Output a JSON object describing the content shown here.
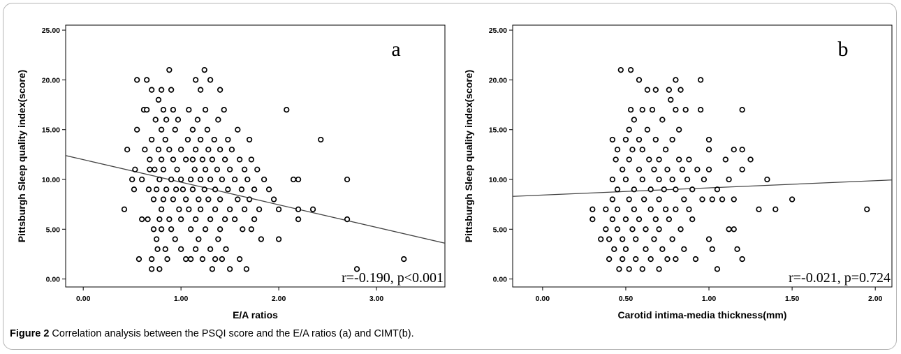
{
  "caption": {
    "label": "Figure 2",
    "text": " Correlation analysis between the PSQI score and the E/A ratios (a) and CIMT(b)."
  },
  "chart_data": [
    {
      "type": "scatter",
      "panel_letter": "a",
      "annotation": "r=-0.190, p<0.001",
      "xlabel": "E/A ratios",
      "ylabel": "Pittsburgh Sleep quality index(score)",
      "xlim": [
        -0.18,
        3.7
      ],
      "ylim": [
        -0.8,
        25.5
      ],
      "xticks": [
        0.0,
        1.0,
        2.0,
        3.0
      ],
      "xtick_labels": [
        "0.00",
        "1.00",
        "2.00",
        "3.00"
      ],
      "yticks": [
        0,
        5,
        10,
        15,
        20,
        25
      ],
      "ytick_labels": [
        "0.00",
        "5.00",
        "10.00",
        "15.00",
        "20.00",
        "25.00"
      ],
      "fit_line": {
        "x": [
          -0.18,
          3.7
        ],
        "y": [
          12.4,
          3.6
        ]
      },
      "points": [
        [
          0.45,
          13
        ],
        [
          0.42,
          7
        ],
        [
          0.5,
          10
        ],
        [
          0.52,
          9
        ],
        [
          0.53,
          11
        ],
        [
          0.55,
          15
        ],
        [
          0.55,
          20
        ],
        [
          0.57,
          2
        ],
        [
          0.6,
          10
        ],
        [
          0.6,
          6
        ],
        [
          0.62,
          17
        ],
        [
          0.63,
          13
        ],
        [
          0.65,
          20
        ],
        [
          0.65,
          17
        ],
        [
          0.66,
          6
        ],
        [
          0.67,
          9
        ],
        [
          0.68,
          12
        ],
        [
          0.68,
          11
        ],
        [
          0.7,
          19
        ],
        [
          0.7,
          14
        ],
        [
          0.7,
          2
        ],
        [
          0.7,
          1
        ],
        [
          0.72,
          5
        ],
        [
          0.72,
          8
        ],
        [
          0.73,
          11
        ],
        [
          0.74,
          16
        ],
        [
          0.75,
          9
        ],
        [
          0.75,
          4
        ],
        [
          0.76,
          3
        ],
        [
          0.77,
          18
        ],
        [
          0.77,
          13
        ],
        [
          0.78,
          10
        ],
        [
          0.78,
          6
        ],
        [
          0.78,
          1
        ],
        [
          0.8,
          19
        ],
        [
          0.8,
          15
        ],
        [
          0.8,
          12
        ],
        [
          0.8,
          7
        ],
        [
          0.8,
          5
        ],
        [
          0.82,
          17
        ],
        [
          0.82,
          11
        ],
        [
          0.82,
          8
        ],
        [
          0.84,
          14
        ],
        [
          0.84,
          3
        ],
        [
          0.85,
          16
        ],
        [
          0.85,
          9
        ],
        [
          0.86,
          2
        ],
        [
          0.88,
          21
        ],
        [
          0.88,
          13
        ],
        [
          0.88,
          6
        ],
        [
          0.9,
          19
        ],
        [
          0.9,
          10
        ],
        [
          0.9,
          5
        ],
        [
          0.92,
          17
        ],
        [
          0.92,
          12
        ],
        [
          0.92,
          8
        ],
        [
          0.94,
          15
        ],
        [
          0.94,
          4
        ],
        [
          0.95,
          9
        ],
        [
          0.96,
          11
        ],
        [
          0.97,
          16
        ],
        [
          0.98,
          7
        ],
        [
          1.0,
          13
        ],
        [
          1.0,
          10
        ],
        [
          1.0,
          6
        ],
        [
          1.0,
          3
        ],
        [
          1.02,
          9
        ],
        [
          1.05,
          12
        ],
        [
          1.05,
          8
        ],
        [
          1.05,
          2
        ],
        [
          1.07,
          14
        ],
        [
          1.08,
          17
        ],
        [
          1.08,
          7
        ],
        [
          1.1,
          10
        ],
        [
          1.1,
          5
        ],
        [
          1.1,
          2
        ],
        [
          1.12,
          15
        ],
        [
          1.12,
          12
        ],
        [
          1.12,
          9
        ],
        [
          1.14,
          11
        ],
        [
          1.15,
          20
        ],
        [
          1.15,
          13
        ],
        [
          1.15,
          6
        ],
        [
          1.15,
          3
        ],
        [
          1.17,
          16
        ],
        [
          1.18,
          8
        ],
        [
          1.18,
          4
        ],
        [
          1.2,
          19
        ],
        [
          1.2,
          14
        ],
        [
          1.2,
          10
        ],
        [
          1.2,
          7
        ],
        [
          1.22,
          12
        ],
        [
          1.22,
          2
        ],
        [
          1.24,
          21
        ],
        [
          1.24,
          9
        ],
        [
          1.25,
          17
        ],
        [
          1.25,
          11
        ],
        [
          1.25,
          5
        ],
        [
          1.27,
          15
        ],
        [
          1.28,
          13
        ],
        [
          1.28,
          8
        ],
        [
          1.3,
          20
        ],
        [
          1.3,
          10
        ],
        [
          1.3,
          6
        ],
        [
          1.3,
          3
        ],
        [
          1.32,
          12
        ],
        [
          1.32,
          1
        ],
        [
          1.34,
          14
        ],
        [
          1.35,
          9
        ],
        [
          1.35,
          7
        ],
        [
          1.35,
          2
        ],
        [
          1.37,
          11
        ],
        [
          1.38,
          16
        ],
        [
          1.38,
          4
        ],
        [
          1.4,
          19
        ],
        [
          1.4,
          13
        ],
        [
          1.4,
          8
        ],
        [
          1.4,
          5
        ],
        [
          1.42,
          10
        ],
        [
          1.42,
          2
        ],
        [
          1.44,
          17
        ],
        [
          1.45,
          12
        ],
        [
          1.45,
          6
        ],
        [
          1.46,
          3
        ],
        [
          1.48,
          14
        ],
        [
          1.48,
          9
        ],
        [
          1.5,
          11
        ],
        [
          1.5,
          7
        ],
        [
          1.5,
          1
        ],
        [
          1.52,
          13
        ],
        [
          1.55,
          10
        ],
        [
          1.55,
          6
        ],
        [
          1.58,
          15
        ],
        [
          1.58,
          8
        ],
        [
          1.6,
          12
        ],
        [
          1.6,
          2
        ],
        [
          1.62,
          9
        ],
        [
          1.63,
          5
        ],
        [
          1.65,
          11
        ],
        [
          1.65,
          7
        ],
        [
          1.67,
          1
        ],
        [
          1.68,
          10
        ],
        [
          1.7,
          14
        ],
        [
          1.7,
          8
        ],
        [
          1.72,
          12
        ],
        [
          1.72,
          5
        ],
        [
          1.75,
          9
        ],
        [
          1.75,
          6
        ],
        [
          1.78,
          11
        ],
        [
          1.8,
          7
        ],
        [
          1.82,
          4
        ],
        [
          1.85,
          10
        ],
        [
          1.9,
          9
        ],
        [
          1.95,
          8
        ],
        [
          2.0,
          4
        ],
        [
          2.0,
          7
        ],
        [
          2.08,
          17
        ],
        [
          2.15,
          10
        ],
        [
          2.2,
          10
        ],
        [
          2.2,
          7
        ],
        [
          2.2,
          6
        ],
        [
          2.35,
          7
        ],
        [
          2.43,
          14
        ],
        [
          2.7,
          10
        ],
        [
          2.7,
          6
        ],
        [
          2.8,
          1
        ],
        [
          3.28,
          2
        ]
      ]
    },
    {
      "type": "scatter",
      "panel_letter": "b",
      "annotation": "r=-0.021, p=0.724",
      "xlabel": "Carotid intima-media thickness(mm)",
      "ylabel": "Pittsburgh Sleep quality index(score)",
      "xlim": [
        -0.18,
        2.1
      ],
      "ylim": [
        -0.8,
        25.5
      ],
      "xticks": [
        0.0,
        0.5,
        1.0,
        1.5,
        2.0
      ],
      "xtick_labels": [
        "0.00",
        "0.50",
        "1.00",
        "1.50",
        "2.00"
      ],
      "yticks": [
        0,
        5,
        10,
        15,
        20,
        25
      ],
      "ytick_labels": [
        "0.00",
        "5.00",
        "10.00",
        "15.00",
        "20.00",
        "25.00"
      ],
      "fit_line": {
        "x": [
          -0.18,
          2.1
        ],
        "y": [
          8.3,
          9.95
        ]
      },
      "points": [
        [
          0.3,
          7
        ],
        [
          0.3,
          6
        ],
        [
          0.35,
          4
        ],
        [
          0.38,
          7
        ],
        [
          0.38,
          5
        ],
        [
          0.4,
          4
        ],
        [
          0.4,
          2
        ],
        [
          0.42,
          14
        ],
        [
          0.42,
          10
        ],
        [
          0.42,
          8
        ],
        [
          0.42,
          6
        ],
        [
          0.43,
          3
        ],
        [
          0.44,
          12
        ],
        [
          0.45,
          13
        ],
        [
          0.45,
          9
        ],
        [
          0.45,
          7
        ],
        [
          0.45,
          5
        ],
        [
          0.46,
          1
        ],
        [
          0.47,
          21
        ],
        [
          0.48,
          11
        ],
        [
          0.48,
          4
        ],
        [
          0.48,
          2
        ],
        [
          0.5,
          14
        ],
        [
          0.5,
          10
        ],
        [
          0.5,
          6
        ],
        [
          0.5,
          3
        ],
        [
          0.52,
          15
        ],
        [
          0.52,
          12
        ],
        [
          0.52,
          8
        ],
        [
          0.52,
          1
        ],
        [
          0.53,
          21
        ],
        [
          0.53,
          17
        ],
        [
          0.54,
          13
        ],
        [
          0.54,
          5
        ],
        [
          0.55,
          16
        ],
        [
          0.55,
          9
        ],
        [
          0.55,
          7
        ],
        [
          0.56,
          4
        ],
        [
          0.56,
          2
        ],
        [
          0.58,
          20
        ],
        [
          0.58,
          14
        ],
        [
          0.58,
          11
        ],
        [
          0.58,
          6
        ],
        [
          0.6,
          17
        ],
        [
          0.6,
          13
        ],
        [
          0.6,
          10
        ],
        [
          0.6,
          1
        ],
        [
          0.61,
          8
        ],
        [
          0.62,
          5
        ],
        [
          0.62,
          3
        ],
        [
          0.63,
          19
        ],
        [
          0.63,
          15
        ],
        [
          0.64,
          12
        ],
        [
          0.65,
          9
        ],
        [
          0.65,
          7
        ],
        [
          0.65,
          2
        ],
        [
          0.66,
          17
        ],
        [
          0.67,
          11
        ],
        [
          0.67,
          4
        ],
        [
          0.68,
          19
        ],
        [
          0.68,
          14
        ],
        [
          0.68,
          6
        ],
        [
          0.7,
          12
        ],
        [
          0.7,
          10
        ],
        [
          0.7,
          8
        ],
        [
          0.7,
          5
        ],
        [
          0.7,
          1
        ],
        [
          0.72,
          16
        ],
        [
          0.72,
          3
        ],
        [
          0.73,
          9
        ],
        [
          0.74,
          13
        ],
        [
          0.74,
          7
        ],
        [
          0.75,
          11
        ],
        [
          0.75,
          2
        ],
        [
          0.76,
          19
        ],
        [
          0.76,
          6
        ],
        [
          0.77,
          18
        ],
        [
          0.78,
          10
        ],
        [
          0.78,
          14
        ],
        [
          0.78,
          4
        ],
        [
          0.8,
          20
        ],
        [
          0.8,
          17
        ],
        [
          0.8,
          9
        ],
        [
          0.8,
          7
        ],
        [
          0.8,
          2
        ],
        [
          0.82,
          12
        ],
        [
          0.82,
          15
        ],
        [
          0.83,
          19
        ],
        [
          0.83,
          5
        ],
        [
          0.84,
          11
        ],
        [
          0.85,
          8
        ],
        [
          0.85,
          3
        ],
        [
          0.86,
          17
        ],
        [
          0.87,
          10
        ],
        [
          0.88,
          7
        ],
        [
          0.88,
          12
        ],
        [
          0.9,
          9
        ],
        [
          0.9,
          6
        ],
        [
          0.92,
          2
        ],
        [
          0.93,
          11
        ],
        [
          0.95,
          20
        ],
        [
          0.95,
          17
        ],
        [
          0.96,
          8
        ],
        [
          0.97,
          10
        ],
        [
          1.0,
          14
        ],
        [
          1.0,
          13
        ],
        [
          1.0,
          11
        ],
        [
          1.0,
          4
        ],
        [
          1.02,
          8
        ],
        [
          1.02,
          3
        ],
        [
          1.05,
          9
        ],
        [
          1.05,
          1
        ],
        [
          1.08,
          8
        ],
        [
          1.1,
          12
        ],
        [
          1.12,
          10
        ],
        [
          1.12,
          5
        ],
        [
          1.15,
          13
        ],
        [
          1.15,
          8
        ],
        [
          1.15,
          5
        ],
        [
          1.17,
          3
        ],
        [
          1.2,
          17
        ],
        [
          1.2,
          13
        ],
        [
          1.2,
          11
        ],
        [
          1.2,
          2
        ],
        [
          1.25,
          12
        ],
        [
          1.3,
          7
        ],
        [
          1.35,
          10
        ],
        [
          1.4,
          7
        ],
        [
          1.5,
          8
        ],
        [
          1.95,
          7
        ]
      ]
    }
  ]
}
